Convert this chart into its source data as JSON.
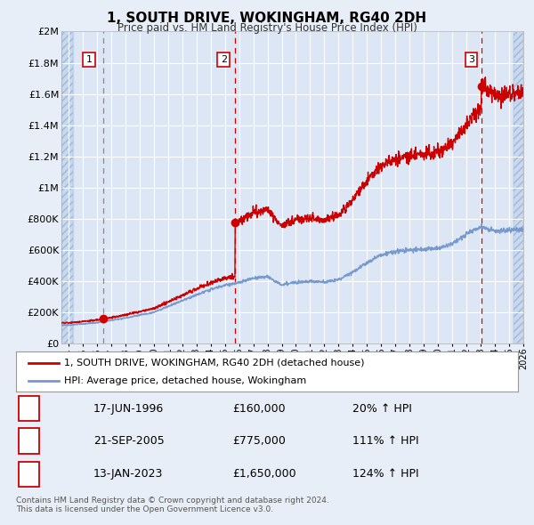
{
  "title": "1, SOUTH DRIVE, WOKINGHAM, RG40 2DH",
  "subtitle": "Price paid vs. HM Land Registry's House Price Index (HPI)",
  "ylabel_ticks": [
    "£0",
    "£200K",
    "£400K",
    "£600K",
    "£800K",
    "£1M",
    "£1.2M",
    "£1.4M",
    "£1.6M",
    "£1.8M",
    "£2M"
  ],
  "ytick_values": [
    0,
    200000,
    400000,
    600000,
    800000,
    1000000,
    1200000,
    1400000,
    1600000,
    1800000,
    2000000
  ],
  "ylim": [
    0,
    2000000
  ],
  "xlim_start": 1993.5,
  "xlim_end": 2026.0,
  "bg_color": "#e8eef7",
  "plot_bg_color": "#dce6f5",
  "grid_color": "#ffffff",
  "red_line_color": "#cc0000",
  "blue_line_color": "#7799cc",
  "vline1_color": "#999999",
  "vline23_color": "#cc0000",
  "sale_points": [
    {
      "year": 1996.46,
      "price": 160000,
      "label": "1"
    },
    {
      "year": 2005.72,
      "price": 775000,
      "label": "2"
    },
    {
      "year": 2023.04,
      "price": 1650000,
      "label": "3"
    }
  ],
  "label_positions": [
    {
      "year": 1996.0,
      "price": 1800000
    },
    {
      "year": 2005.2,
      "price": 1800000
    },
    {
      "year": 2022.5,
      "price": 1800000
    }
  ],
  "legend_line1": "1, SOUTH DRIVE, WOKINGHAM, RG40 2DH (detached house)",
  "legend_line2": "HPI: Average price, detached house, Wokingham",
  "table_rows": [
    {
      "num": "1",
      "date": "17-JUN-1996",
      "price": "£160,000",
      "hpi": "20% ↑ HPI"
    },
    {
      "num": "2",
      "date": "21-SEP-2005",
      "price": "£775,000",
      "hpi": "111% ↑ HPI"
    },
    {
      "num": "3",
      "date": "13-JAN-2023",
      "price": "£1,650,000",
      "hpi": "124% ↑ HPI"
    }
  ],
  "footer": "Contains HM Land Registry data © Crown copyright and database right 2024.\nThis data is licensed under the Open Government Licence v3.0."
}
